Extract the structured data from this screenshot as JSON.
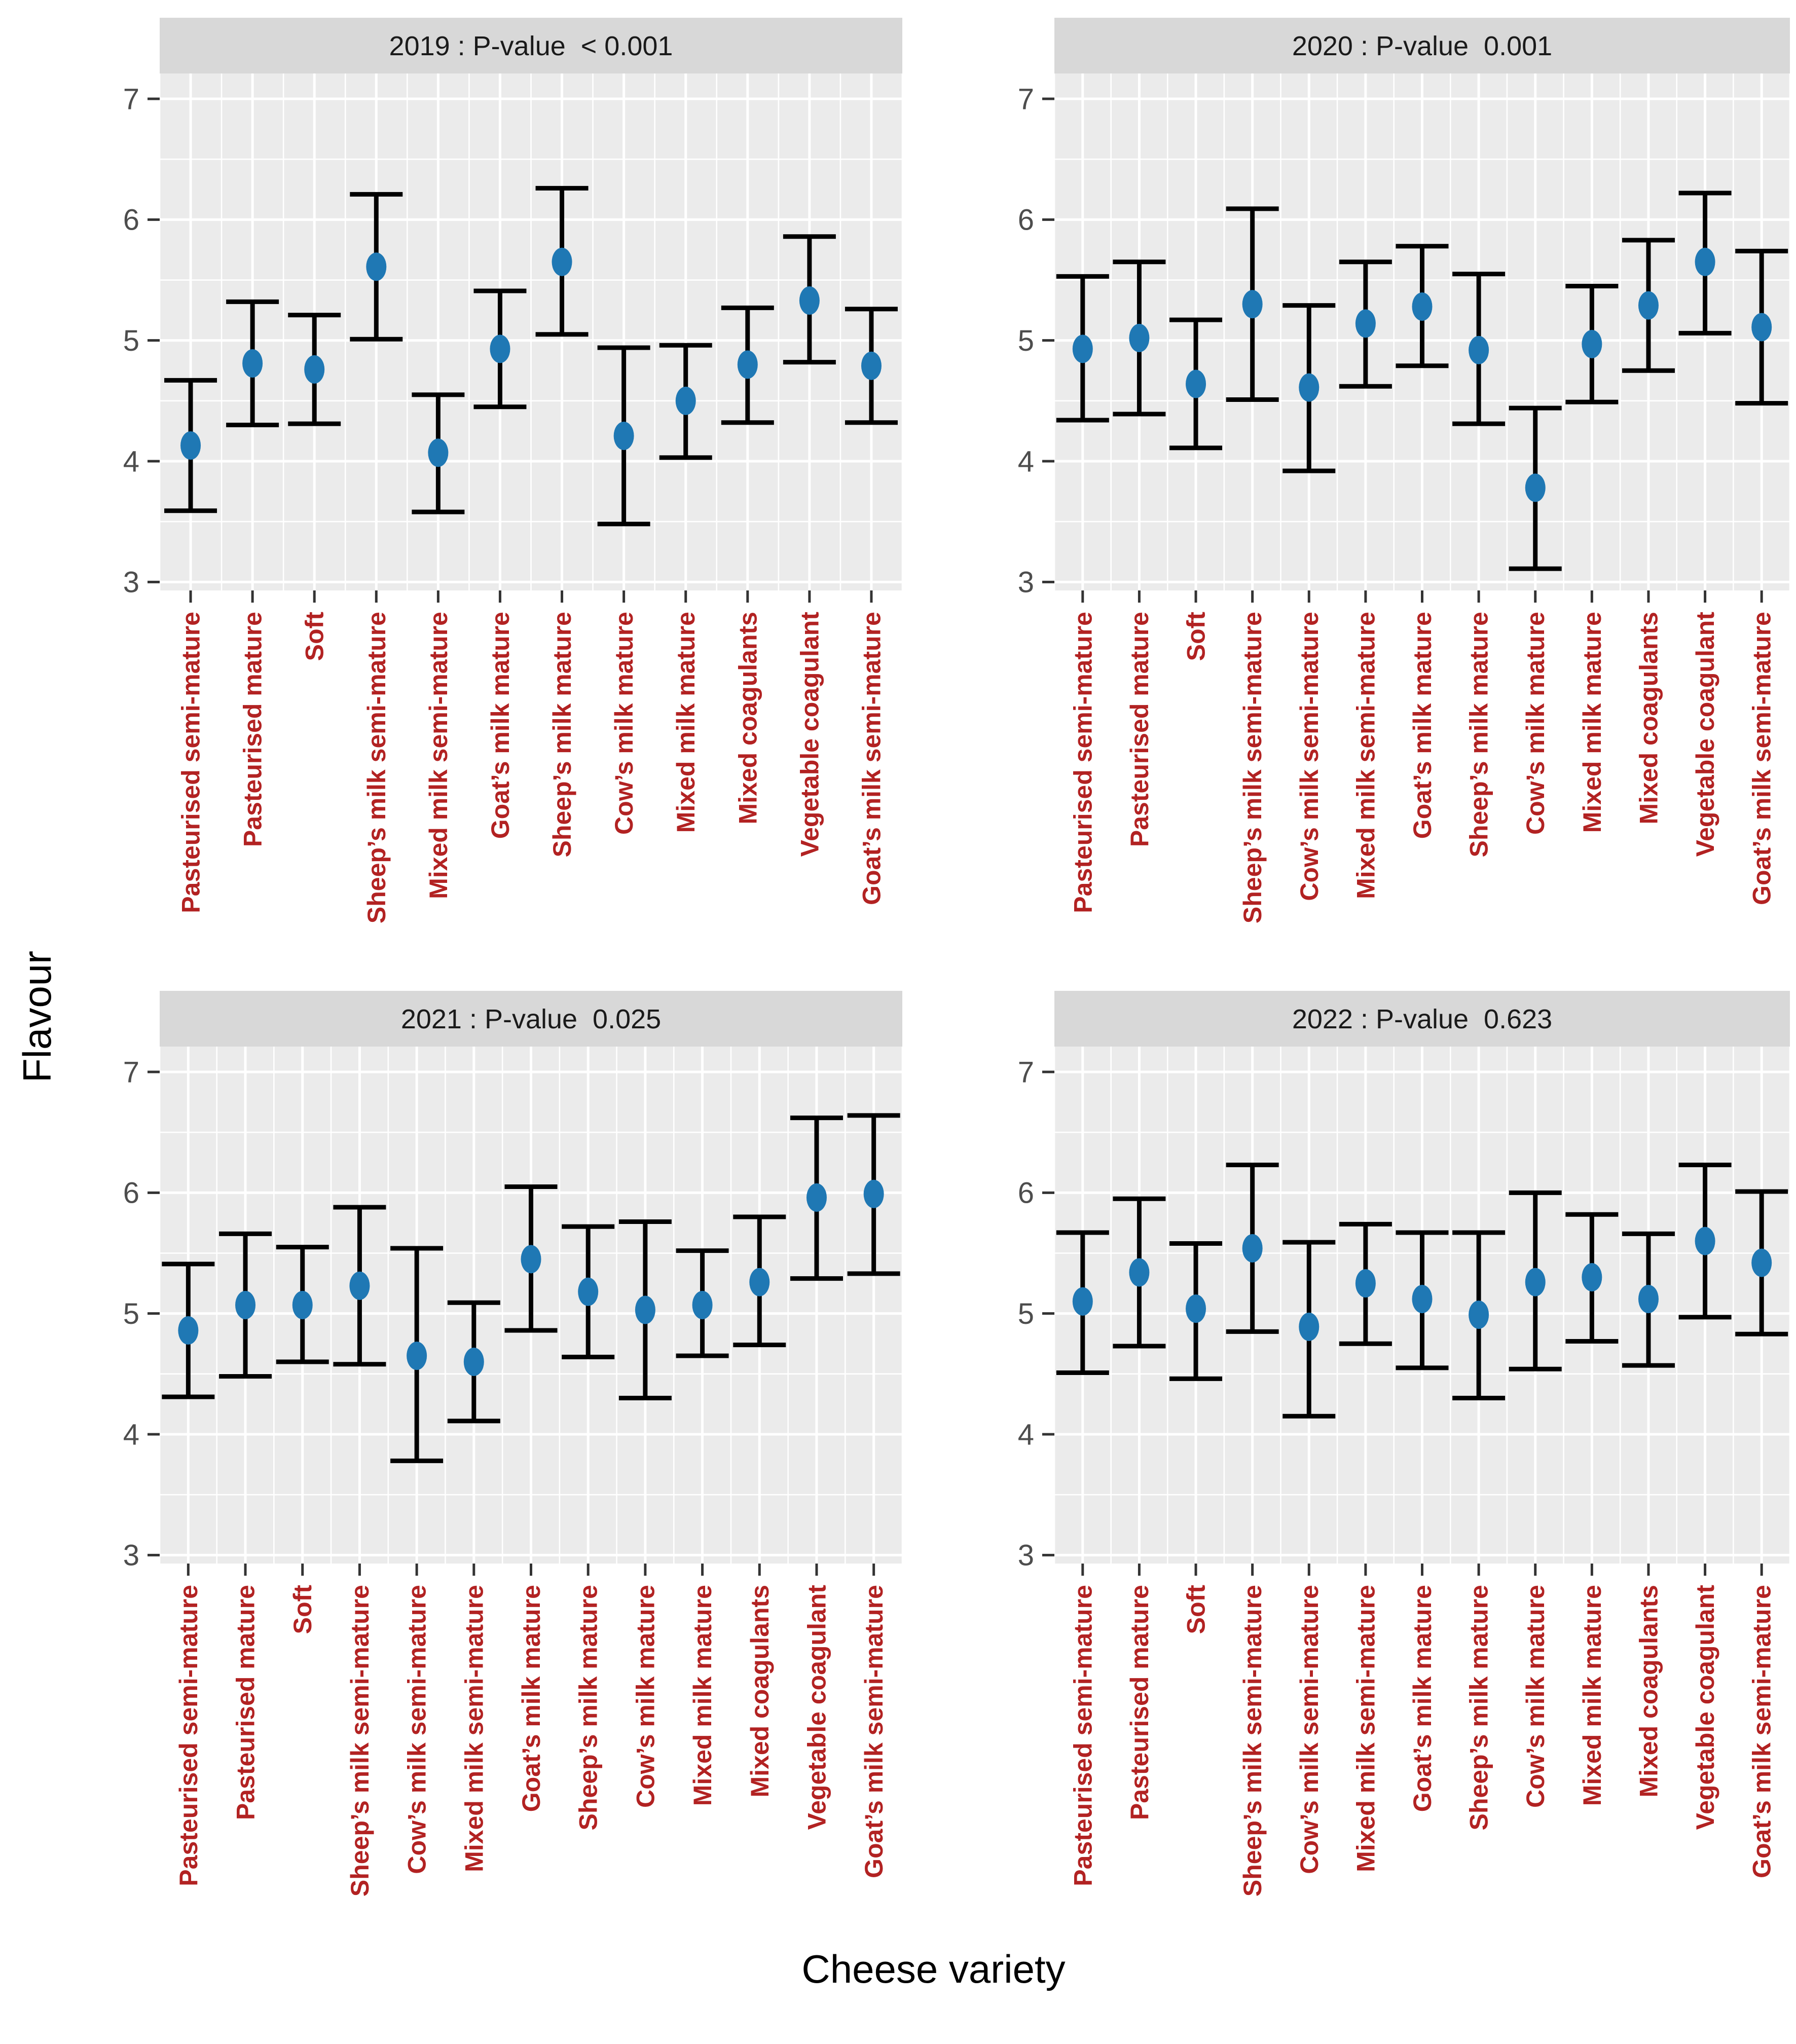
{
  "chart_data": {
    "type": "scatter",
    "title": "",
    "xlabel": "Cheese variety",
    "ylabel": "Flavour",
    "ylim": [
      2.93,
      7.21
    ],
    "y_ticks": [
      7,
      6,
      5,
      4,
      3
    ],
    "y_tick_labels": [
      "7",
      "6",
      "5",
      "4",
      "3"
    ],
    "grid": true,
    "legend": false,
    "marker": "point-with-error-bar",
    "style": {
      "point_color": "#1f78b4",
      "errorbar_color": "#000000",
      "panel_bg": "#ebebeb",
      "strip_bg": "#d8d8d8",
      "strip_text_color": "#1a1a1a",
      "grid_color": "#ffffff",
      "x_label_color": "#b22222",
      "y_tick_color": "#4d4d4d",
      "tick_mark_color": "#333333"
    },
    "facets": [
      {
        "year": "2019",
        "p_value": "< 0.001",
        "label": "2019 : P-value  < 0.001",
        "categories": [
          "Pasteurised semi-mature",
          "Pasteurised mature",
          "Soft",
          "Sheep’s milk semi-mature",
          "Mixed milk semi-mature",
          "Goat’s milk mature",
          "Sheep’s milk mature",
          "Cow’s milk mature",
          "Mixed milk mature",
          "Mixed coagulants",
          "Vegetable coagulant",
          "Goat’s milk semi-mature"
        ],
        "means": [
          4.13,
          4.81,
          4.76,
          5.61,
          4.07,
          4.93,
          5.65,
          4.21,
          4.5,
          4.8,
          5.33,
          4.79
        ],
        "lower": [
          3.59,
          4.3,
          4.31,
          5.01,
          3.58,
          4.45,
          5.05,
          3.48,
          4.03,
          4.32,
          4.82,
          4.32
        ],
        "upper": [
          4.67,
          5.32,
          5.21,
          6.21,
          4.55,
          5.41,
          6.26,
          4.94,
          4.96,
          5.27,
          5.86,
          5.26
        ]
      },
      {
        "year": "2020",
        "p_value": "0.001",
        "label": "2020 : P-value  0.001",
        "categories": [
          "Pasteurised semi-mature",
          "Pasteurised mature",
          "Soft",
          "Sheep’s milk semi-mature",
          "Cow’s milk semi-mature",
          "Mixed milk semi-mature",
          "Goat’s milk mature",
          "Sheep’s milk mature",
          "Cow’s milk mature",
          "Mixed milk mature",
          "Mixed coagulants",
          "Vegetable coagulant",
          "Goat’s milk semi-mature"
        ],
        "means": [
          4.93,
          5.02,
          4.64,
          5.3,
          4.61,
          5.14,
          5.28,
          4.92,
          3.78,
          4.97,
          5.29,
          5.65,
          5.11
        ],
        "lower": [
          4.34,
          4.39,
          4.11,
          4.51,
          3.92,
          4.62,
          4.79,
          4.31,
          3.11,
          4.49,
          4.75,
          5.06,
          4.48
        ],
        "upper": [
          5.53,
          5.65,
          5.17,
          6.09,
          5.29,
          5.65,
          5.78,
          5.55,
          4.44,
          5.45,
          5.83,
          6.22,
          5.74
        ]
      },
      {
        "year": "2021",
        "p_value": "0.025",
        "label": "2021 : P-value  0.025",
        "categories": [
          "Pasteurised semi-mature",
          "Pasteurised mature",
          "Soft",
          "Sheep’s milk semi-mature",
          "Cow’s milk semi-mature",
          "Mixed milk semi-mature",
          "Goat’s milk mature",
          "Sheep’s milk mature",
          "Cow’s milk mature",
          "Mixed milk mature",
          "Mixed coagulants",
          "Vegetable coagulant",
          "Goat’s milk semi-mature"
        ],
        "means": [
          4.86,
          5.07,
          5.07,
          5.23,
          4.65,
          4.6,
          5.45,
          5.18,
          5.03,
          5.07,
          5.26,
          5.96,
          5.99
        ],
        "lower": [
          4.31,
          4.48,
          4.6,
          4.58,
          3.78,
          4.11,
          4.86,
          4.64,
          4.3,
          4.65,
          4.74,
          5.29,
          5.33
        ],
        "upper": [
          5.41,
          5.66,
          5.55,
          5.88,
          5.54,
          5.09,
          6.05,
          5.72,
          5.76,
          5.52,
          5.8,
          6.62,
          6.64
        ]
      },
      {
        "year": "2022",
        "p_value": "0.623",
        "label": "2022 : P-value  0.623",
        "categories": [
          "Pasteurised semi-mature",
          "Pasteurised mature",
          "Soft",
          "Sheep’s milk semi-mature",
          "Cow’s milk semi-mature",
          "Mixed milk semi-mature",
          "Goat’s milk mature",
          "Sheep’s milk mature",
          "Cow’s milk mature",
          "Mixed milk mature",
          "Mixed coagulants",
          "Vegetable coagulant",
          "Goat’s milk semi-mature"
        ],
        "means": [
          5.1,
          5.34,
          5.04,
          5.54,
          4.89,
          5.25,
          5.12,
          4.99,
          5.26,
          5.3,
          5.12,
          5.6,
          5.42
        ],
        "lower": [
          4.51,
          4.73,
          4.46,
          4.85,
          4.15,
          4.75,
          4.55,
          4.3,
          4.54,
          4.77,
          4.57,
          4.97,
          4.83
        ],
        "upper": [
          5.67,
          5.95,
          5.58,
          6.23,
          5.59,
          5.74,
          5.67,
          5.67,
          6.0,
          5.82,
          5.66,
          6.23,
          6.01
        ]
      }
    ]
  }
}
